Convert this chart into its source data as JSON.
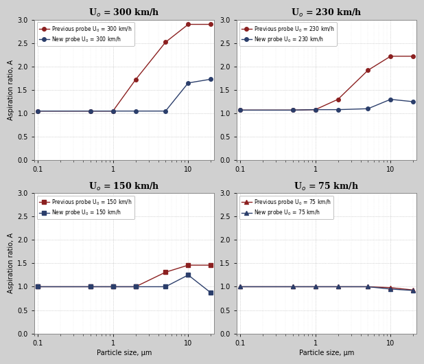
{
  "panels": [
    {
      "title": "U$_o$ = 300 km/h",
      "prev_label": "Previous probe U$_0$ = 300 km/h",
      "new_label": "New probe U$_0$ = 300 km/h",
      "x": [
        0.1,
        0.5,
        1.0,
        2.0,
        5.0,
        10.0,
        20.0
      ],
      "prev_y": [
        1.05,
        1.05,
        1.05,
        1.72,
        2.52,
        2.9,
        2.9
      ],
      "new_y": [
        1.05,
        1.05,
        1.05,
        1.05,
        1.05,
        1.65,
        1.73
      ],
      "prev_marker": "o",
      "new_marker": "o"
    },
    {
      "title": "U$_o$ = 230 km/h",
      "prev_label": "Previous probe U$_0$ = 230 km/h",
      "new_label": "New probe U$_0$ = 230 km/h",
      "x": [
        0.1,
        0.5,
        1.0,
        2.0,
        5.0,
        10.0,
        20.0
      ],
      "prev_y": [
        1.07,
        1.07,
        1.08,
        1.3,
        1.92,
        2.22,
        2.22
      ],
      "new_y": [
        1.07,
        1.07,
        1.08,
        1.08,
        1.1,
        1.3,
        1.25
      ],
      "prev_marker": "o",
      "new_marker": "o"
    },
    {
      "title": "U$_o$ = 150 km/h",
      "prev_label": "Previous probe U$_0$ = 150 km/h",
      "new_label": "New probe U$_0$ = 150 km/h",
      "x": [
        0.1,
        0.5,
        1.0,
        2.0,
        5.0,
        10.0,
        20.0
      ],
      "prev_y": [
        1.0,
        1.0,
        1.0,
        1.0,
        1.31,
        1.46,
        1.46
      ],
      "new_y": [
        1.0,
        1.0,
        1.0,
        1.0,
        1.0,
        1.25,
        0.87
      ],
      "prev_marker": "s",
      "new_marker": "s"
    },
    {
      "title": "U$_o$ = 75 km/h",
      "prev_label": "Previous probe U$_0$ = 75 km/h",
      "new_label": "New probe U$_0$ = 75 km/h",
      "x": [
        0.1,
        0.5,
        1.0,
        2.0,
        5.0,
        10.0,
        20.0
      ],
      "prev_y": [
        1.0,
        1.0,
        1.0,
        1.0,
        1.0,
        0.98,
        0.93
      ],
      "new_y": [
        1.0,
        1.0,
        1.0,
        1.0,
        1.0,
        0.95,
        0.92
      ],
      "prev_marker": "^",
      "new_marker": "^"
    }
  ],
  "prev_color": "#8B2020",
  "new_color": "#2B3E6B",
  "ylim": [
    0.0,
    3.0
  ],
  "yticks": [
    0.0,
    0.5,
    1.0,
    1.5,
    2.0,
    2.5,
    3.0
  ],
  "xlabel": "Particle size, μm",
  "ylabel": "Aspiration ratio, A",
  "outer_bg": "#d0d0d0",
  "plot_bg": "#ffffff",
  "panel_bg": "#efefef"
}
